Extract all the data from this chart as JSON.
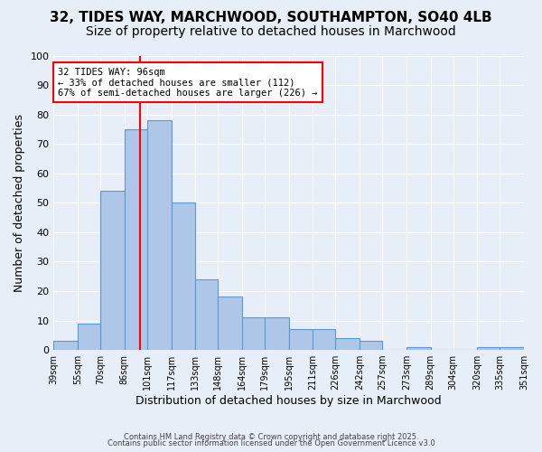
{
  "title_line1": "32, TIDES WAY, MARCHWOOD, SOUTHAMPTON, SO40 4LB",
  "title_line2": "Size of property relative to detached houses in Marchwood",
  "xlabel": "Distribution of detached houses by size in Marchwood",
  "ylabel": "Number of detached properties",
  "bin_edges": [
    39,
    55,
    70,
    86,
    101,
    117,
    133,
    148,
    164,
    179,
    195,
    211,
    226,
    242,
    257,
    273,
    289,
    304,
    320,
    335,
    351
  ],
  "counts": [
    3,
    9,
    54,
    75,
    78,
    50,
    24,
    18,
    11,
    11,
    7,
    7,
    4,
    3,
    0,
    1,
    0,
    0,
    1,
    1
  ],
  "bar_color": "#aec6e8",
  "bar_edge_color": "#5b9bd5",
  "property_size": 96,
  "red_line_color": "#ff0000",
  "annotation_text": "32 TIDES WAY: 96sqm\n← 33% of detached houses are smaller (112)\n67% of semi-detached houses are larger (226) →",
  "annotation_box_color": "#ffffff",
  "annotation_box_edge_color": "#ff0000",
  "ylim": [
    0,
    100
  ],
  "background_color": "#e8eef8",
  "grid_color": "#ffffff",
  "footer_line1": "Contains HM Land Registry data © Crown copyright and database right 2025.",
  "footer_line2": "Contains public sector information licensed under the Open Government Licence v3.0",
  "title_fontsize": 11,
  "subtitle_fontsize": 10,
  "tick_label_fontsize": 7,
  "axis_label_fontsize": 9
}
